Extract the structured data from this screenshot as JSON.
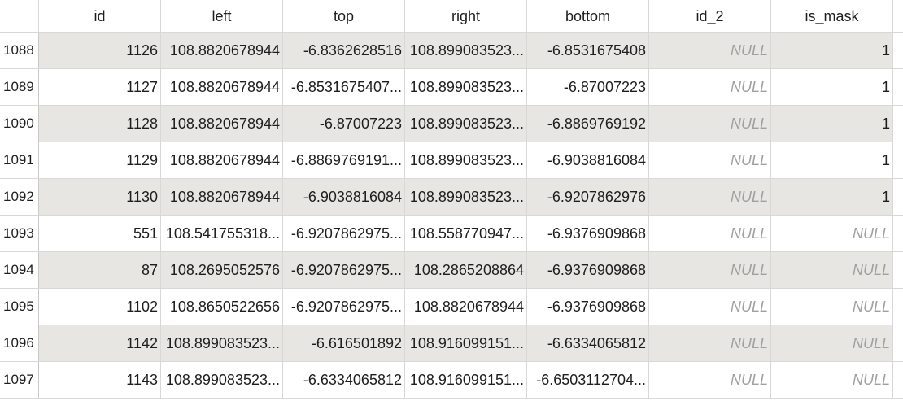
{
  "table": {
    "columns": [
      "id",
      "left",
      "top",
      "right",
      "bottom",
      "id_2",
      "is_mask"
    ],
    "rows": [
      {
        "row_num": "1088",
        "cells": [
          "1126",
          "108.8820678944",
          "-6.8362628516",
          "108.899083523...",
          "-6.8531675408",
          "NULL",
          "1"
        ],
        "null_flags": [
          false,
          false,
          false,
          false,
          false,
          true,
          false
        ]
      },
      {
        "row_num": "1089",
        "cells": [
          "1127",
          "108.8820678944",
          "-6.8531675407...",
          "108.899083523...",
          "-6.87007223",
          "NULL",
          "1"
        ],
        "null_flags": [
          false,
          false,
          false,
          false,
          false,
          true,
          false
        ]
      },
      {
        "row_num": "1090",
        "cells": [
          "1128",
          "108.8820678944",
          "-6.87007223",
          "108.899083523...",
          "-6.8869769192",
          "NULL",
          "1"
        ],
        "null_flags": [
          false,
          false,
          false,
          false,
          false,
          true,
          false
        ]
      },
      {
        "row_num": "1091",
        "cells": [
          "1129",
          "108.8820678944",
          "-6.8869769191...",
          "108.899083523...",
          "-6.9038816084",
          "NULL",
          "1"
        ],
        "null_flags": [
          false,
          false,
          false,
          false,
          false,
          true,
          false
        ]
      },
      {
        "row_num": "1092",
        "cells": [
          "1130",
          "108.8820678944",
          "-6.9038816084",
          "108.899083523...",
          "-6.9207862976",
          "NULL",
          "1"
        ],
        "null_flags": [
          false,
          false,
          false,
          false,
          false,
          true,
          false
        ]
      },
      {
        "row_num": "1093",
        "cells": [
          "551",
          "108.541755318...",
          "-6.9207862975...",
          "108.558770947...",
          "-6.9376909868",
          "NULL",
          "NULL"
        ],
        "null_flags": [
          false,
          false,
          false,
          false,
          false,
          true,
          true
        ]
      },
      {
        "row_num": "1094",
        "cells": [
          "87",
          "108.2695052576",
          "-6.9207862975...",
          "108.2865208864",
          "-6.9376909868",
          "NULL",
          "NULL"
        ],
        "null_flags": [
          false,
          false,
          false,
          false,
          false,
          true,
          true
        ]
      },
      {
        "row_num": "1095",
        "cells": [
          "1102",
          "108.8650522656",
          "-6.9207862975...",
          "108.8820678944",
          "-6.9376909868",
          "NULL",
          "NULL"
        ],
        "null_flags": [
          false,
          false,
          false,
          false,
          false,
          true,
          true
        ]
      },
      {
        "row_num": "1096",
        "cells": [
          "1142",
          "108.899083523...",
          "-6.616501892",
          "108.916099151...",
          "-6.6334065812",
          "NULL",
          "NULL"
        ],
        "null_flags": [
          false,
          false,
          false,
          false,
          false,
          true,
          true
        ]
      },
      {
        "row_num": "1097",
        "cells": [
          "1143",
          "108.899083523...",
          "-6.6334065812",
          "108.916099151...",
          "-6.6503112704...",
          "NULL",
          "NULL"
        ],
        "null_flags": [
          false,
          false,
          false,
          false,
          false,
          true,
          true
        ]
      }
    ]
  }
}
